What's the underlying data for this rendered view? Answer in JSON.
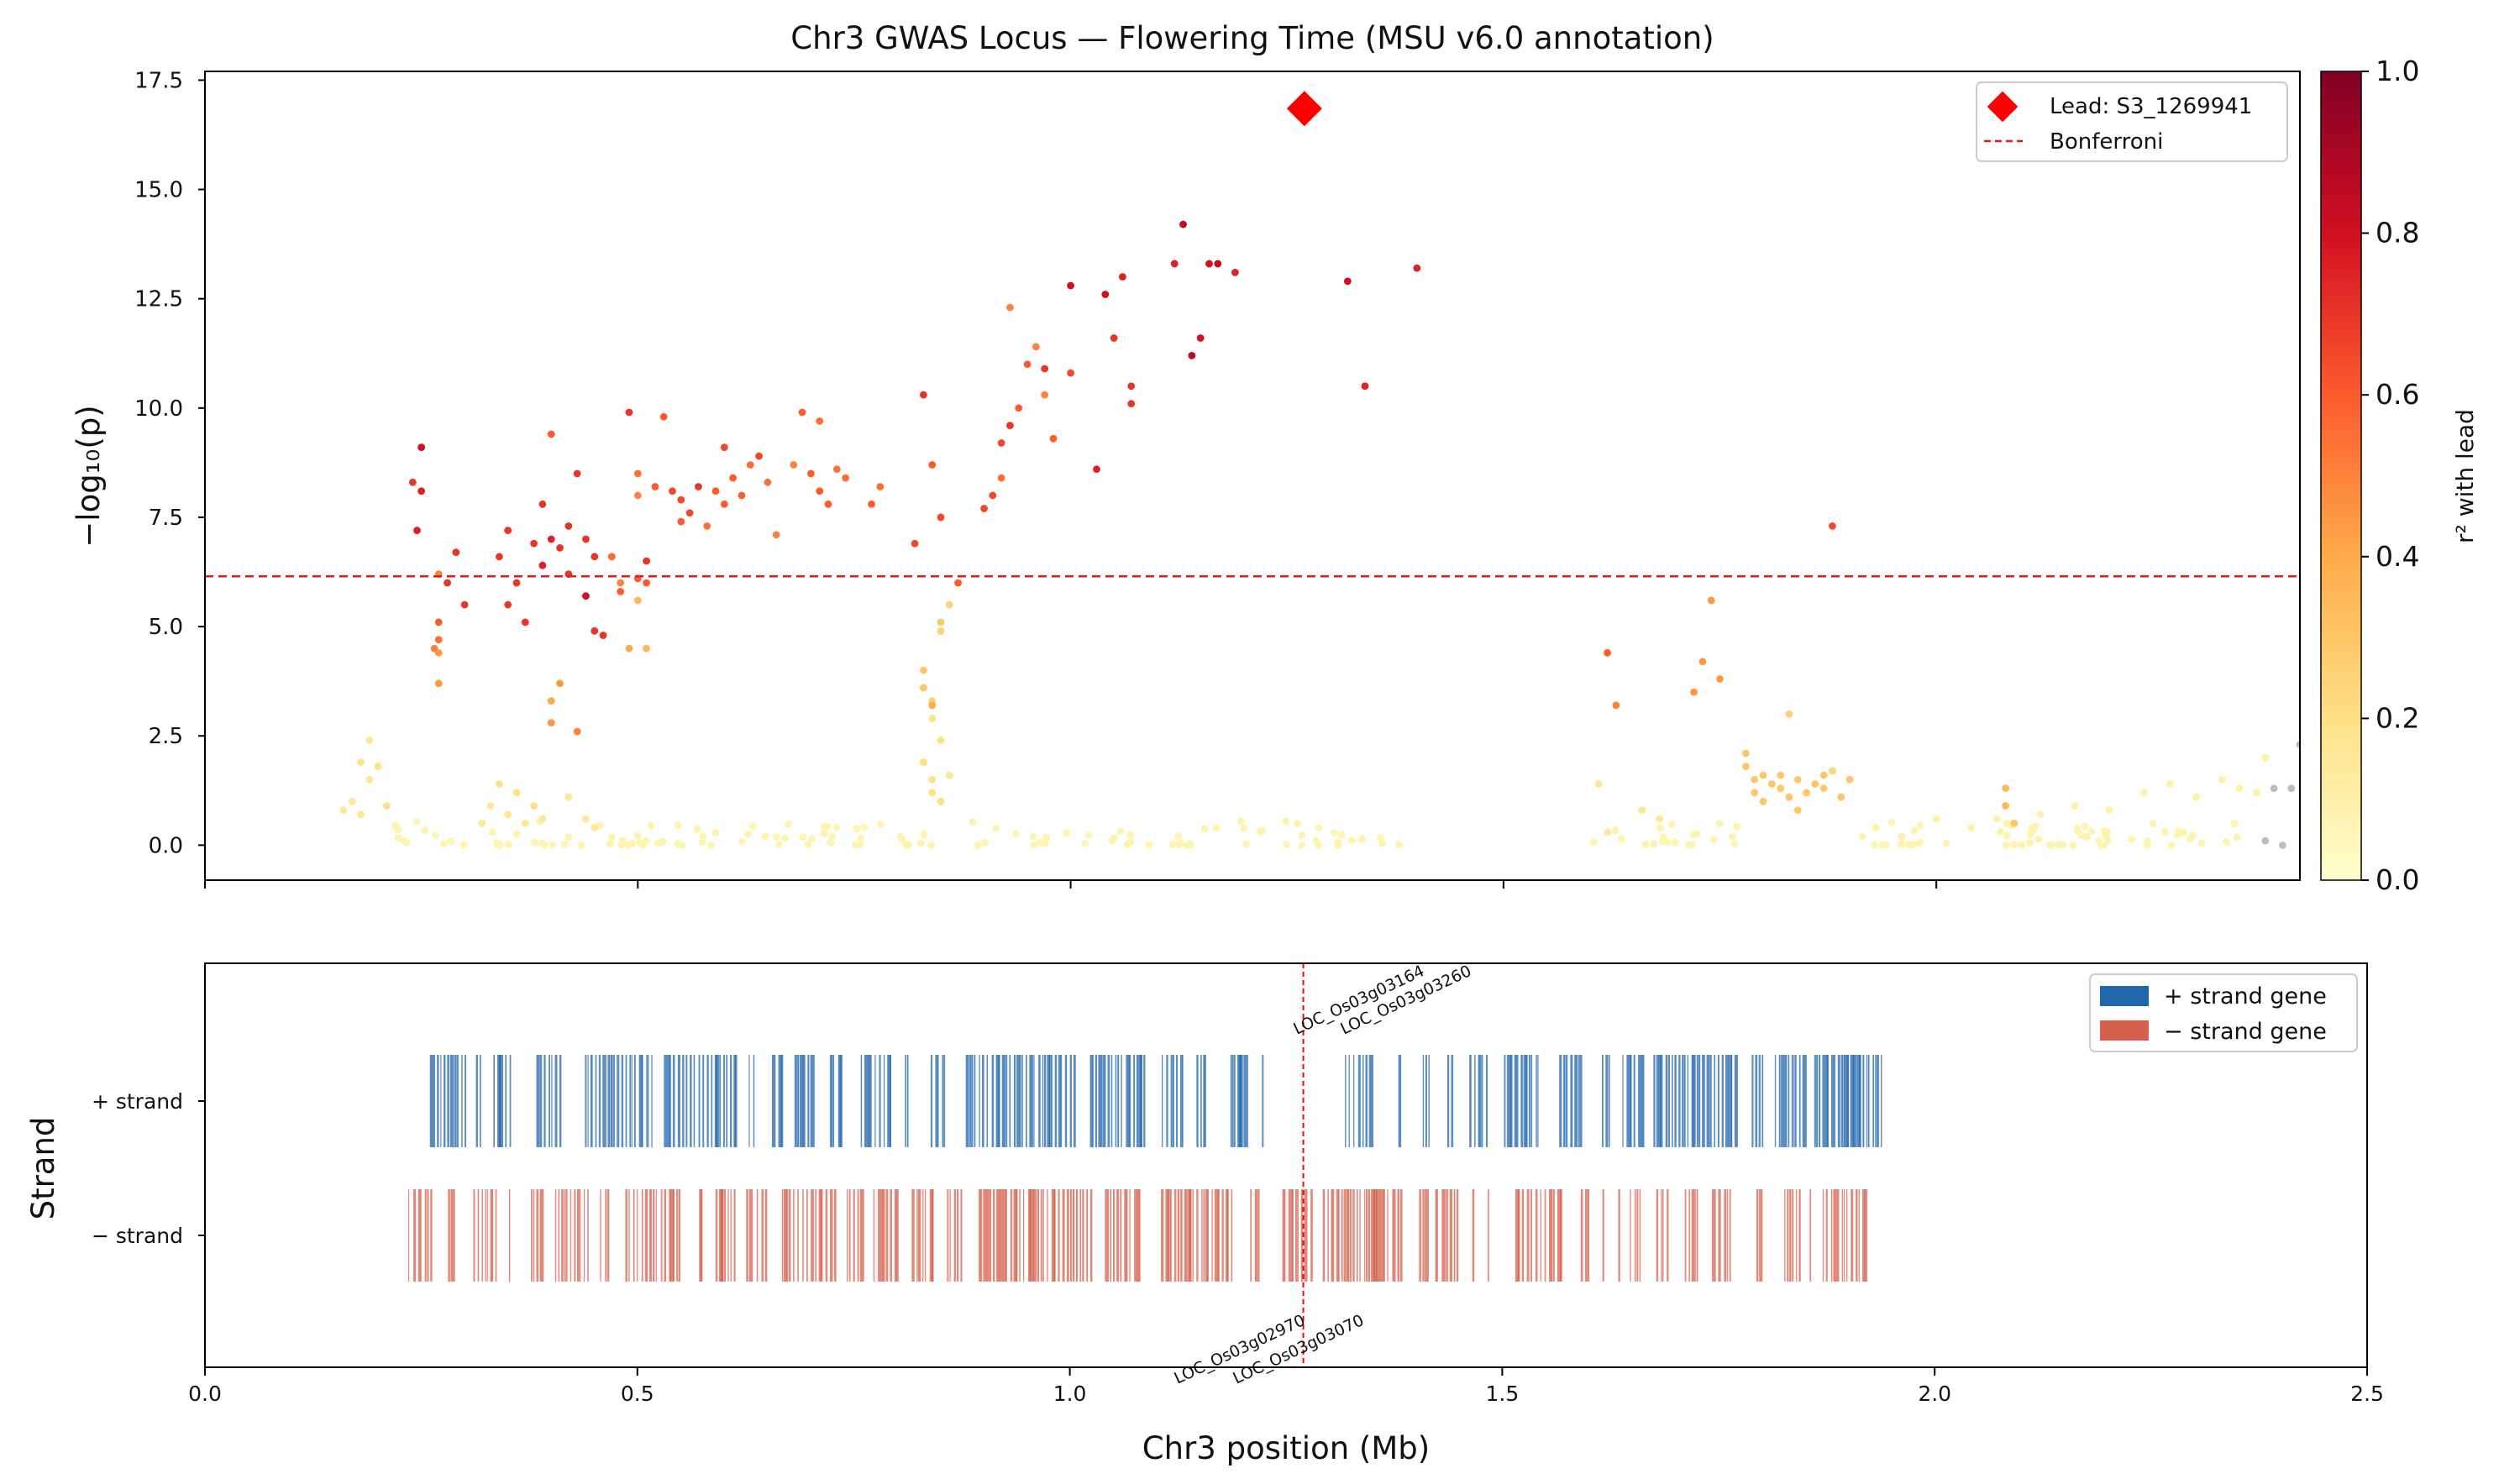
{
  "chart_data": [
    {
      "type": "scatter",
      "title": "Chr3 GWAS Locus — Flowering Time (MSU v6.0 annotation)",
      "ylabel": "−log₁₀(p)",
      "xlim": [
        0.0,
        2.42
      ],
      "ylim": [
        -0.8,
        17.7
      ],
      "yticks": [
        0.0,
        2.5,
        5.0,
        7.5,
        10.0,
        12.5,
        15.0,
        17.5
      ],
      "ytick_labels": [
        "0.0",
        "2.5",
        "5.0",
        "7.5",
        "10.0",
        "12.5",
        "15.0",
        "17.5"
      ],
      "xticks": [
        0.0,
        0.5,
        1.0,
        1.5,
        2.0
      ],
      "bonferroni_threshold": 6.15,
      "lead_snp": {
        "name": "S3_1269941",
        "x": 1.27,
        "y": 16.85
      },
      "legend": {
        "placement": "top-right",
        "entries": [
          "Lead: S3_1269941",
          "Bonferroni"
        ]
      },
      "colorbar": {
        "label": "r² with lead",
        "range": [
          0.0,
          1.0
        ],
        "ticks": [
          "0.0",
          "0.2",
          "0.4",
          "0.6",
          "0.8",
          "1.0"
        ],
        "colors": [
          "#ffffcc",
          "#fed976",
          "#fd8d3c",
          "#e31a1c",
          "#800026"
        ]
      },
      "points": [
        [
          0.24,
          8.3,
          0.7
        ],
        [
          0.25,
          8.1,
          0.75
        ],
        [
          0.245,
          7.2,
          0.75
        ],
        [
          0.25,
          9.1,
          0.8
        ],
        [
          0.28,
          6.0,
          0.7
        ],
        [
          0.27,
          6.2,
          0.5
        ],
        [
          0.29,
          6.7,
          0.7
        ],
        [
          0.3,
          5.5,
          0.7
        ],
        [
          0.27,
          5.1,
          0.6
        ],
        [
          0.27,
          4.7,
          0.55
        ],
        [
          0.265,
          4.5,
          0.5
        ],
        [
          0.27,
          4.4,
          0.45
        ],
        [
          0.27,
          3.7,
          0.45
        ],
        [
          0.35,
          7.2,
          0.7
        ],
        [
          0.34,
          6.6,
          0.7
        ],
        [
          0.36,
          6.0,
          0.7
        ],
        [
          0.35,
          5.5,
          0.7
        ],
        [
          0.37,
          5.1,
          0.7
        ],
        [
          0.38,
          6.9,
          0.7
        ],
        [
          0.39,
          6.4,
          0.75
        ],
        [
          0.4,
          7.0,
          0.75
        ],
        [
          0.39,
          7.8,
          0.7
        ],
        [
          0.4,
          9.4,
          0.6
        ],
        [
          0.41,
          6.8,
          0.7
        ],
        [
          0.42,
          6.2,
          0.7
        ],
        [
          0.42,
          7.3,
          0.7
        ],
        [
          0.43,
          8.5,
          0.7
        ],
        [
          0.44,
          7.0,
          0.7
        ],
        [
          0.45,
          6.6,
          0.7
        ],
        [
          0.44,
          5.7,
          0.8
        ],
        [
          0.45,
          4.9,
          0.7
        ],
        [
          0.46,
          4.8,
          0.7
        ],
        [
          0.47,
          6.6,
          0.6
        ],
        [
          0.48,
          6.0,
          0.5
        ],
        [
          0.47,
          6.6,
          0.55
        ],
        [
          0.5,
          6.1,
          0.6
        ],
        [
          0.51,
          6.0,
          0.6
        ],
        [
          0.48,
          5.8,
          0.6
        ],
        [
          0.4,
          3.3,
          0.4
        ],
        [
          0.4,
          2.8,
          0.45
        ],
        [
          0.43,
          2.6,
          0.5
        ],
        [
          0.41,
          3.7,
          0.45
        ],
        [
          0.49,
          9.9,
          0.7
        ],
        [
          0.5,
          8.5,
          0.55
        ],
        [
          0.5,
          8.0,
          0.5
        ],
        [
          0.51,
          6.5,
          0.7
        ],
        [
          0.52,
          8.2,
          0.6
        ],
        [
          0.53,
          9.8,
          0.6
        ],
        [
          0.54,
          8.1,
          0.65
        ],
        [
          0.55,
          7.9,
          0.65
        ],
        [
          0.55,
          7.4,
          0.6
        ],
        [
          0.56,
          7.6,
          0.65
        ],
        [
          0.57,
          8.2,
          0.7
        ],
        [
          0.58,
          7.3,
          0.55
        ],
        [
          0.59,
          8.1,
          0.6
        ],
        [
          0.6,
          9.1,
          0.65
        ],
        [
          0.6,
          7.8,
          0.6
        ],
        [
          0.61,
          8.4,
          0.6
        ],
        [
          0.62,
          8.0,
          0.6
        ],
        [
          0.63,
          8.7,
          0.55
        ],
        [
          0.64,
          8.9,
          0.65
        ],
        [
          0.65,
          8.3,
          0.55
        ],
        [
          0.66,
          7.1,
          0.5
        ],
        [
          0.68,
          8.7,
          0.5
        ],
        [
          0.69,
          9.9,
          0.6
        ],
        [
          0.7,
          8.5,
          0.6
        ],
        [
          0.71,
          9.7,
          0.55
        ],
        [
          0.71,
          8.1,
          0.6
        ],
        [
          0.72,
          7.8,
          0.6
        ],
        [
          0.73,
          8.6,
          0.55
        ],
        [
          0.74,
          8.4,
          0.55
        ],
        [
          0.77,
          7.8,
          0.6
        ],
        [
          0.78,
          8.2,
          0.55
        ],
        [
          0.49,
          4.5,
          0.4
        ],
        [
          0.51,
          4.5,
          0.35
        ],
        [
          0.5,
          5.6,
          0.35
        ],
        [
          0.82,
          6.9,
          0.65
        ],
        [
          0.83,
          10.3,
          0.7
        ],
        [
          0.84,
          8.7,
          0.6
        ],
        [
          0.85,
          7.5,
          0.65
        ],
        [
          0.87,
          6.0,
          0.6
        ],
        [
          0.9,
          7.7,
          0.65
        ],
        [
          0.91,
          8.0,
          0.65
        ],
        [
          0.92,
          8.4,
          0.55
        ],
        [
          0.92,
          9.2,
          0.65
        ],
        [
          0.93,
          9.6,
          0.7
        ],
        [
          0.93,
          12.3,
          0.5
        ],
        [
          0.94,
          10.0,
          0.6
        ],
        [
          0.95,
          11.0,
          0.6
        ],
        [
          0.96,
          11.4,
          0.5
        ],
        [
          0.97,
          10.9,
          0.7
        ],
        [
          0.97,
          10.3,
          0.5
        ],
        [
          0.98,
          9.3,
          0.6
        ],
        [
          1.0,
          12.8,
          0.8
        ],
        [
          1.0,
          10.8,
          0.65
        ],
        [
          1.03,
          8.6,
          0.75
        ],
        [
          1.04,
          12.6,
          0.8
        ],
        [
          1.05,
          11.6,
          0.7
        ],
        [
          1.06,
          13.0,
          0.75
        ],
        [
          1.07,
          10.5,
          0.7
        ],
        [
          1.07,
          10.1,
          0.7
        ],
        [
          1.12,
          13.3,
          0.75
        ],
        [
          1.13,
          14.2,
          0.85
        ],
        [
          1.14,
          11.2,
          0.85
        ],
        [
          1.15,
          11.6,
          0.8
        ],
        [
          1.16,
          13.3,
          0.8
        ],
        [
          1.17,
          13.3,
          0.85
        ],
        [
          1.19,
          13.1,
          0.75
        ],
        [
          1.32,
          12.9,
          0.8
        ],
        [
          1.34,
          10.5,
          0.75
        ],
        [
          1.4,
          13.2,
          0.75
        ],
        [
          1.88,
          7.3,
          0.65
        ],
        [
          0.83,
          4.0,
          0.3
        ],
        [
          0.83,
          3.6,
          0.3
        ],
        [
          0.84,
          3.3,
          0.25
        ],
        [
          0.84,
          2.9,
          0.2
        ],
        [
          0.85,
          2.4,
          0.2
        ],
        [
          0.83,
          1.9,
          0.2
        ],
        [
          0.84,
          1.2,
          0.2
        ],
        [
          0.85,
          5.1,
          0.3
        ],
        [
          0.85,
          4.9,
          0.25
        ],
        [
          0.86,
          5.5,
          0.25
        ],
        [
          0.84,
          3.2,
          0.4
        ],
        [
          0.84,
          1.5,
          0.2
        ],
        [
          0.85,
          1.0,
          0.2
        ],
        [
          0.86,
          1.6,
          0.15
        ],
        [
          0.16,
          0.8,
          0.15
        ],
        [
          0.17,
          1.0,
          0.15
        ],
        [
          0.18,
          1.9,
          0.2
        ],
        [
          0.18,
          0.7,
          0.15
        ],
        [
          0.19,
          1.5,
          0.15
        ],
        [
          0.19,
          2.4,
          0.15
        ],
        [
          0.2,
          1.8,
          0.2
        ],
        [
          0.21,
          0.9,
          0.2
        ],
        [
          0.23,
          0.1,
          0.1
        ],
        [
          0.32,
          0.5,
          0.15
        ],
        [
          0.33,
          0.9,
          0.15
        ],
        [
          0.34,
          1.4,
          0.2
        ],
        [
          0.35,
          0.7,
          0.15
        ],
        [
          0.36,
          1.2,
          0.2
        ],
        [
          0.37,
          0.5,
          0.15
        ],
        [
          0.38,
          0.9,
          0.2
        ],
        [
          0.39,
          0.6,
          0.15
        ],
        [
          0.42,
          1.1,
          0.15
        ],
        [
          0.44,
          0.6,
          0.15
        ],
        [
          0.45,
          0.4,
          0.15
        ],
        [
          1.61,
          1.4,
          0.15
        ],
        [
          1.62,
          4.4,
          0.6
        ],
        [
          1.63,
          3.2,
          0.5
        ],
        [
          1.62,
          0.3,
          0.15
        ],
        [
          1.66,
          0.8,
          0.15
        ],
        [
          1.68,
          0.6,
          0.15
        ],
        [
          1.72,
          3.5,
          0.45
        ],
        [
          1.73,
          4.2,
          0.45
        ],
        [
          1.74,
          5.6,
          0.45
        ],
        [
          1.75,
          3.8,
          0.45
        ],
        [
          1.78,
          2.1,
          0.3
        ],
        [
          1.78,
          1.8,
          0.3
        ],
        [
          1.79,
          1.5,
          0.3
        ],
        [
          1.79,
          1.2,
          0.3
        ],
        [
          1.8,
          1.6,
          0.3
        ],
        [
          1.8,
          1.0,
          0.3
        ],
        [
          1.81,
          1.4,
          0.3
        ],
        [
          1.82,
          1.3,
          0.3
        ],
        [
          1.82,
          1.6,
          0.3
        ],
        [
          1.83,
          1.1,
          0.3
        ],
        [
          1.83,
          3.0,
          0.25
        ],
        [
          1.84,
          1.5,
          0.3
        ],
        [
          1.84,
          0.8,
          0.3
        ],
        [
          1.85,
          1.2,
          0.3
        ],
        [
          1.86,
          1.4,
          0.3
        ],
        [
          1.87,
          1.6,
          0.3
        ],
        [
          1.87,
          1.3,
          0.3
        ],
        [
          1.88,
          1.7,
          0.25
        ],
        [
          1.89,
          1.1,
          0.3
        ],
        [
          1.9,
          1.5,
          0.3
        ],
        [
          1.93,
          0.4,
          0.1
        ],
        [
          1.96,
          0.2,
          0.1
        ],
        [
          2.0,
          0.6,
          0.1
        ],
        [
          2.04,
          0.4,
          0.1
        ],
        [
          2.07,
          0.6,
          0.1
        ],
        [
          2.08,
          1.3,
          0.35
        ],
        [
          2.08,
          0.9,
          0.35
        ],
        [
          2.09,
          0.5,
          0.3
        ],
        [
          2.12,
          0.7,
          0.1
        ],
        [
          2.16,
          0.9,
          0.1
        ],
        [
          2.2,
          0.8,
          0.1
        ],
        [
          2.24,
          1.2,
          0.1
        ],
        [
          2.27,
          1.4,
          0.1
        ],
        [
          2.3,
          1.1,
          0.1
        ],
        [
          2.33,
          1.5,
          0.1
        ],
        [
          2.35,
          1.3,
          0.1
        ],
        [
          2.37,
          1.2,
          0.1
        ],
        [
          2.38,
          2.0,
          0.1
        ]
      ],
      "grey_points": [
        [
          2.39,
          1.3
        ],
        [
          2.41,
          1.3
        ],
        [
          2.4,
          0.0
        ],
        [
          2.38,
          0.1
        ],
        [
          2.42,
          2.3
        ],
        [
          2.43,
          1.0
        ]
      ]
    },
    {
      "type": "gene_track",
      "xlabel": "Chr3 position (Mb)",
      "ylabel": "Strand",
      "xlim": [
        0.0,
        2.5
      ],
      "xticks": [
        0.0,
        0.5,
        1.0,
        1.5,
        2.0,
        2.5
      ],
      "xtick_labels": [
        "0.0",
        "0.5",
        "1.0",
        "1.5",
        "2.0",
        "2.5"
      ],
      "strand_labels": [
        "+ strand",
        "− strand"
      ],
      "lead_position": 1.27,
      "plus_range": [
        0.26,
        1.94
      ],
      "minus_range": [
        0.235,
        1.92
      ],
      "plus_gaps": [
        [
          1.225,
          1.315
        ]
      ],
      "minus_gaps": [],
      "legend": {
        "placement": "top-right",
        "entries": [
          "+ strand gene",
          "− strand gene"
        ]
      },
      "gene_labels_plus": [
        "LOC_Os03g03164",
        "LOC_Os03g03260"
      ],
      "gene_labels_minus": [
        "LOC_Os03g02970",
        "LOC_Os03g03070"
      ],
      "colors": {
        "plus": "#2166ac",
        "minus": "#d6604d",
        "lead_line": "#ff0000"
      }
    }
  ]
}
